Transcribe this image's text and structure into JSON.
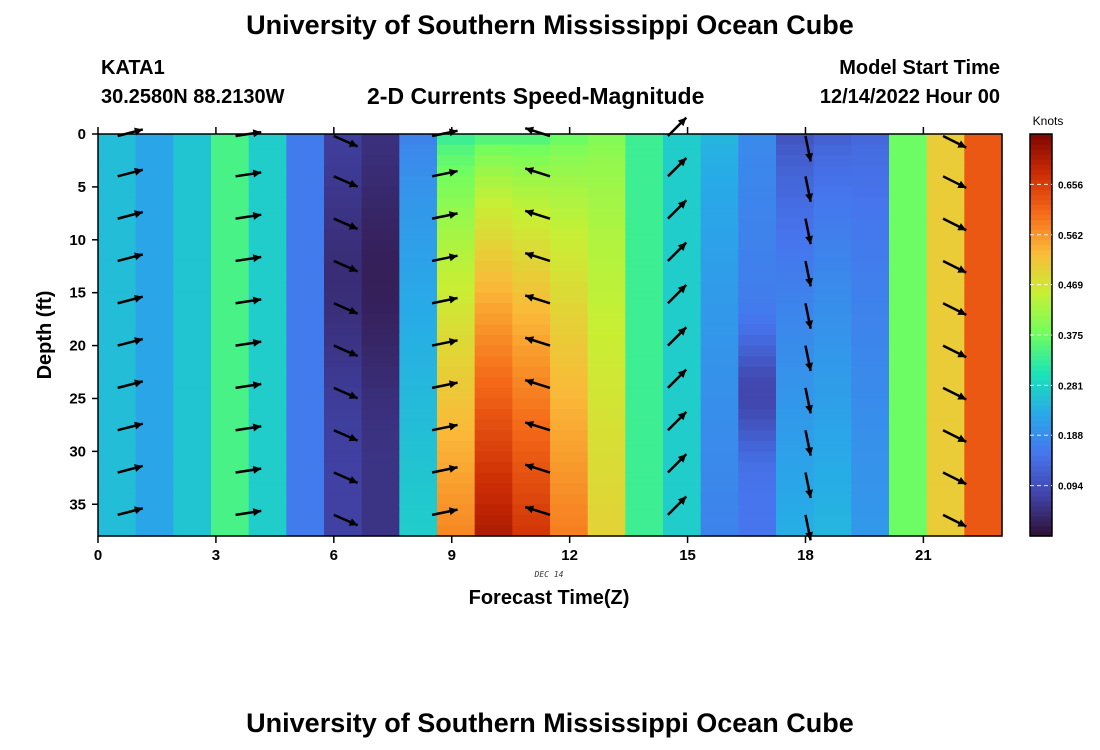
{
  "header": {
    "title": "University of Southern Mississippi Ocean Cube",
    "station": "KATA1",
    "coordinates": "30.2580N  88.2130W",
    "subtitle": "2-D Currents Speed-Magnitude",
    "model_start_label": "Model Start Time",
    "model_start_value": "12/14/2022 Hour 00"
  },
  "footer": {
    "title": "University of Southern Mississippi Ocean Cube"
  },
  "chart_data": {
    "type": "heatmap",
    "title": "2-D Currents Speed-Magnitude",
    "xlabel": "Forecast Time(Z)",
    "ylabel": "Depth (ft)",
    "date_label": "DEC 14",
    "xlim": [
      0,
      23
    ],
    "ylim": [
      0,
      38
    ],
    "x_ticks": [
      0,
      3,
      6,
      9,
      12,
      15,
      18,
      21
    ],
    "y_ticks": [
      0,
      5,
      10,
      15,
      20,
      25,
      30,
      35
    ],
    "colorbar": {
      "label": "Knots",
      "range": [
        0.0,
        0.75
      ],
      "ticks": [
        0.094,
        0.188,
        0.281,
        0.375,
        0.469,
        0.562,
        0.656
      ]
    },
    "colors": {
      "vector": "#000000",
      "axis": "#000000"
    },
    "speed_profiles": [
      {
        "hour": 0,
        "surface": 0.25,
        "bottom": 0.25
      },
      {
        "hour": 1,
        "surface": 0.22,
        "bottom": 0.22
      },
      {
        "hour": 2,
        "surface": 0.26,
        "bottom": 0.26
      },
      {
        "hour": 3,
        "surface": 0.34,
        "bottom": 0.34
      },
      {
        "hour": 4,
        "surface": 0.27,
        "bottom": 0.27
      },
      {
        "hour": 5,
        "surface": 0.16,
        "bottom": 0.16
      },
      {
        "hour": 6,
        "surface": 0.07,
        "bottom": 0.07
      },
      {
        "hour": 7,
        "surface": 0.05,
        "bottom": 0.05
      },
      {
        "hour": 8,
        "surface": 0.17,
        "bottom": 0.27
      },
      {
        "hour": 9,
        "surface": 0.33,
        "bottom": 0.57
      },
      {
        "hour": 10,
        "surface": 0.35,
        "bottom": 0.7
      },
      {
        "hour": 11,
        "surface": 0.35,
        "bottom": 0.66
      },
      {
        "hour": 12,
        "surface": 0.37,
        "bottom": 0.58
      },
      {
        "hour": 13,
        "surface": 0.39,
        "bottom": 0.49
      },
      {
        "hour": 14,
        "surface": 0.33,
        "bottom": 0.33
      },
      {
        "hour": 15,
        "surface": 0.27,
        "bottom": 0.27
      },
      {
        "hour": 16,
        "surface": 0.24,
        "bottom": 0.17
      },
      {
        "hour": 17,
        "surface": 0.18,
        "bottom": 0.15
      },
      {
        "hour": 18,
        "surface": 0.1,
        "bottom": 0.23
      },
      {
        "hour": 19,
        "surface": 0.12,
        "bottom": 0.24
      },
      {
        "hour": 20,
        "surface": 0.13,
        "bottom": 0.2
      },
      {
        "hour": 21,
        "surface": 0.37,
        "bottom": 0.37
      },
      {
        "hour": 22,
        "surface": 0.5,
        "bottom": 0.5
      },
      {
        "hour": 23,
        "surface": 0.62,
        "bottom": 0.62
      }
    ],
    "vector_columns": [
      {
        "hour": 0.5,
        "u": 0.96,
        "v": 0.25
      },
      {
        "hour": 3.5,
        "u": 0.98,
        "v": 0.15
      },
      {
        "hour": 6.0,
        "u": 0.8,
        "v": -0.35
      },
      {
        "hour": 8.5,
        "u": 0.97,
        "v": 0.2
      },
      {
        "hour": 11.5,
        "u": -0.95,
        "v": 0.3
      },
      {
        "hour": 14.5,
        "u": 0.7,
        "v": 0.7
      },
      {
        "hour": 18.0,
        "u": 0.2,
        "v": -0.98
      },
      {
        "hour": 21.5,
        "u": 0.9,
        "v": -0.45
      }
    ]
  }
}
